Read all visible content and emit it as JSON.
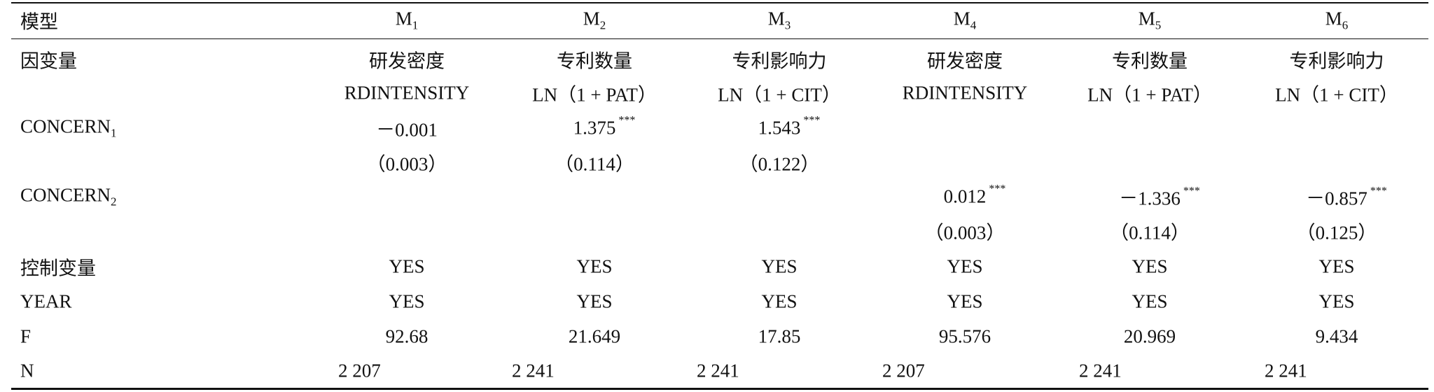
{
  "table": {
    "header": [
      "模型",
      {
        "text": "M",
        "sub": "1"
      },
      {
        "text": "M",
        "sub": "2"
      },
      {
        "text": "M",
        "sub": "3"
      },
      {
        "text": "M",
        "sub": "4"
      },
      {
        "text": "M",
        "sub": "5"
      },
      {
        "text": "M",
        "sub": "6"
      }
    ],
    "rows": [
      {
        "label": "因变量",
        "cells": [
          "研发密度",
          "专利数量",
          "专利影响力",
          "研发密度",
          "专利数量",
          "专利影响力"
        ]
      },
      {
        "label": null,
        "cells": [
          "RDINTENSITY",
          "LN（1 + PAT）",
          "LN（1 + CIT）",
          "RDINTENSITY",
          "LN（1 + PAT）",
          "LN（1 + CIT）"
        ]
      },
      {
        "label": {
          "text": "CONCERN",
          "sub": "1"
        },
        "cells": [
          {
            "value": "－0.001"
          },
          {
            "value": "1.375",
            "stars": "***"
          },
          {
            "value": "1.543",
            "stars": "***"
          },
          null,
          null,
          null
        ]
      },
      {
        "label": null,
        "cells": [
          "（0.003）",
          "（0.114）",
          "（0.122）",
          null,
          null,
          null
        ]
      },
      {
        "label": {
          "text": "CONCERN",
          "sub": "2"
        },
        "cells": [
          null,
          null,
          null,
          {
            "value": "0.012",
            "stars": "***"
          },
          {
            "value": "－1.336",
            "stars": "***"
          },
          {
            "value": "－0.857",
            "stars": "***"
          }
        ]
      },
      {
        "label": null,
        "cells": [
          null,
          null,
          null,
          "（0.003）",
          "（0.114）",
          "（0.125）"
        ]
      },
      {
        "label": "控制变量",
        "cells": [
          "YES",
          "YES",
          "YES",
          "YES",
          "YES",
          "YES"
        ]
      },
      {
        "label": "YEAR",
        "cells": [
          "YES",
          "YES",
          "YES",
          "YES",
          "YES",
          "YES"
        ]
      },
      {
        "label": "F",
        "cells": [
          "92.68",
          "21.649",
          "17.85",
          "95.576",
          "20.969",
          "9.434"
        ]
      },
      {
        "label": "N",
        "cells": [
          "2 207",
          "2 241",
          "2 241",
          "2 207",
          "2 241",
          "2 241"
        ]
      }
    ]
  }
}
